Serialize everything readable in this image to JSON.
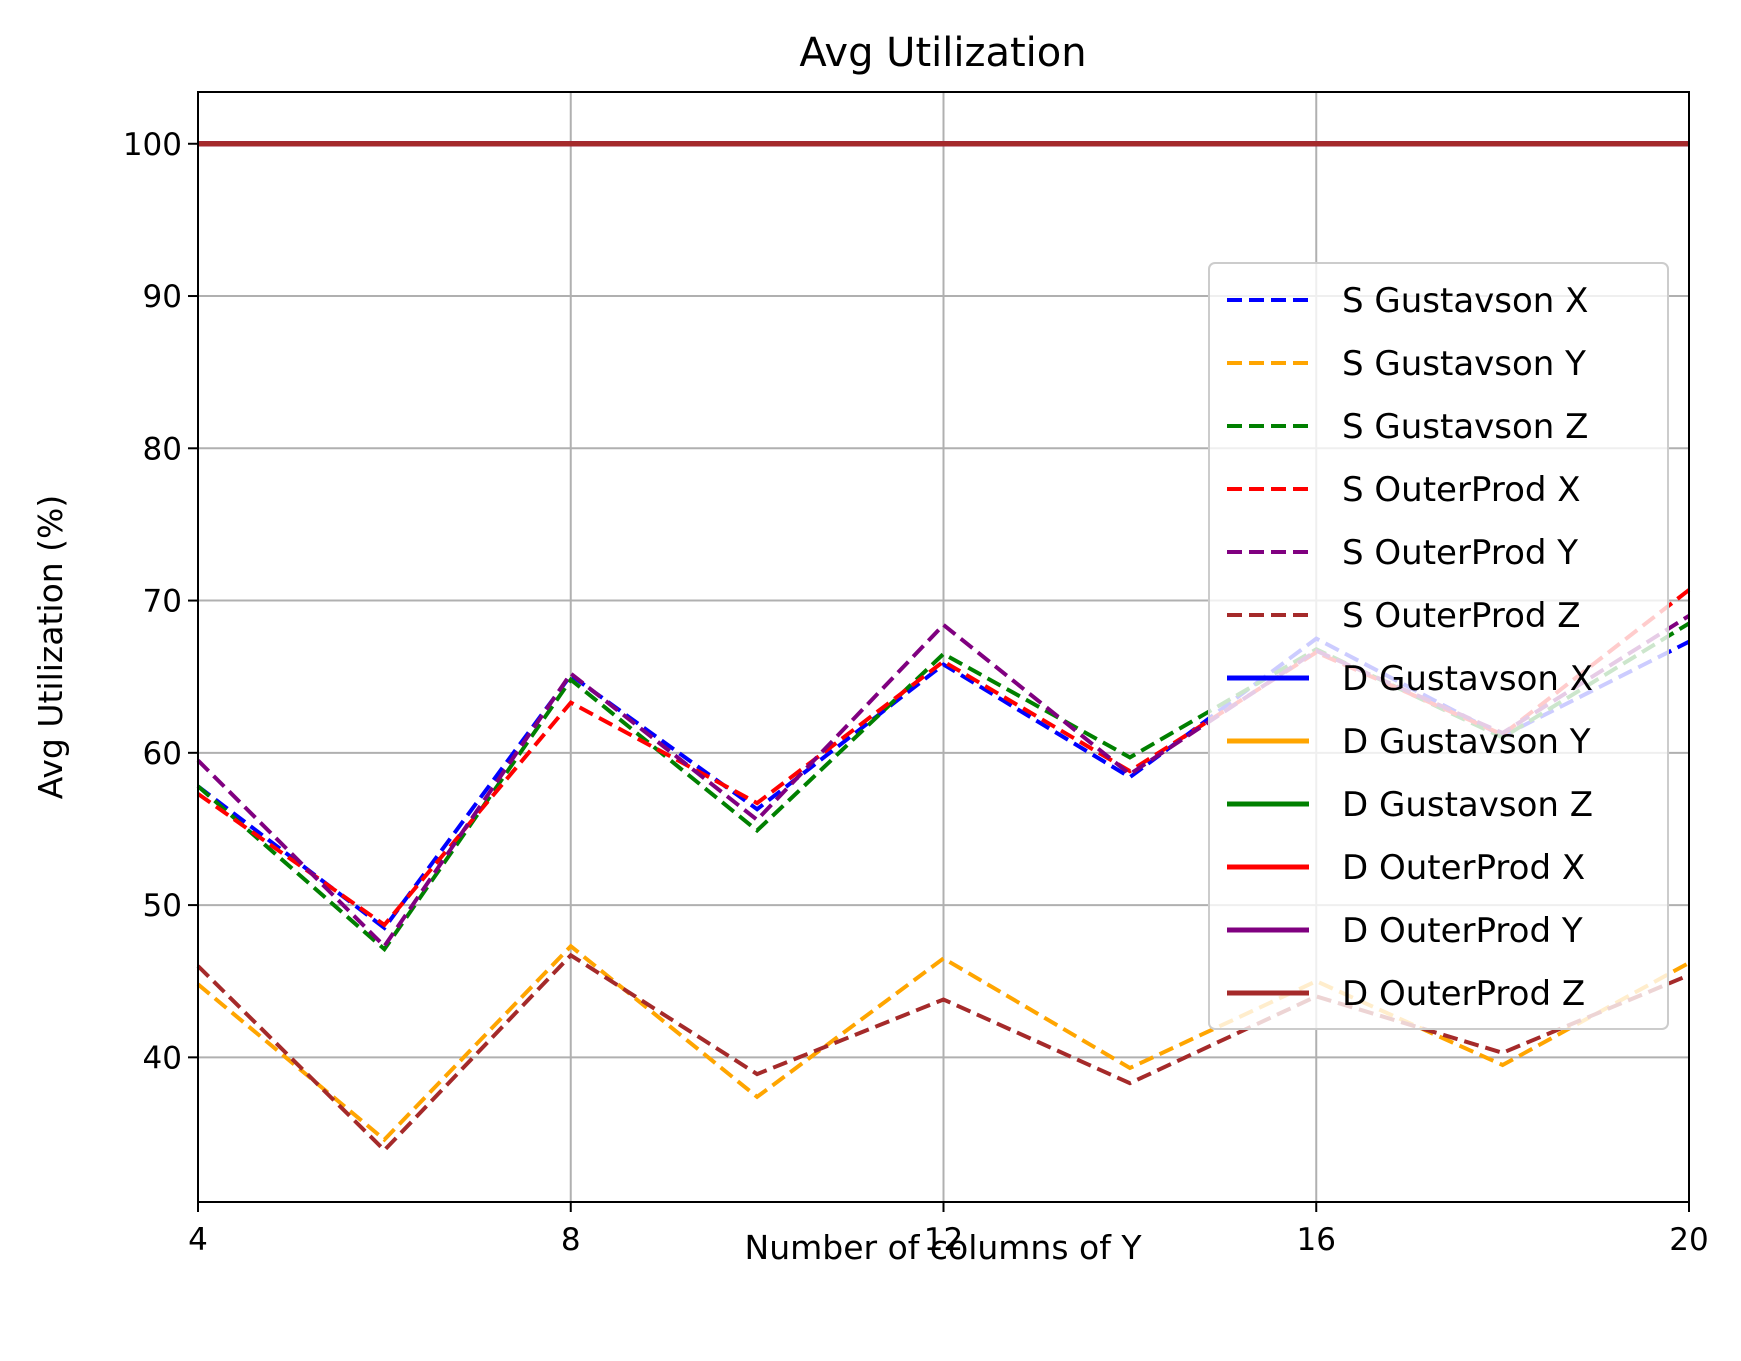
{
  "chart_data": {
    "type": "line",
    "title": "Avg Utilization",
    "xlabel": "Number of columns of Y",
    "ylabel": "Avg Utilization (%)",
    "xlim": [
      4,
      20
    ],
    "ylim": [
      30.5,
      103.4
    ],
    "xticks": [
      4,
      8,
      12,
      16,
      20
    ],
    "yticks": [
      40,
      50,
      60,
      70,
      80,
      90,
      100
    ],
    "grid": true,
    "legend_position": "right",
    "x": [
      4,
      6,
      8,
      10,
      12,
      14,
      16,
      18,
      20
    ],
    "series": [
      {
        "name": "S Gustavson X",
        "color": "#0000ff",
        "dash": true,
        "values": [
          57.8,
          48.5,
          65.1,
          56.3,
          65.8,
          58.4,
          67.5,
          61.1,
          67.3
        ]
      },
      {
        "name": "S Gustavson Y",
        "color": "#ffa500",
        "dash": true,
        "values": [
          44.8,
          34.6,
          47.3,
          37.4,
          46.5,
          39.3,
          45.0,
          39.5,
          46.2
        ]
      },
      {
        "name": "S Gustavson Z",
        "color": "#008000",
        "dash": true,
        "values": [
          57.8,
          47.1,
          64.8,
          54.9,
          66.5,
          59.7,
          66.8,
          61.0,
          68.5
        ]
      },
      {
        "name": "S OuterProd X",
        "color": "#ff0000",
        "dash": true,
        "values": [
          57.3,
          48.7,
          63.3,
          56.7,
          66.0,
          58.8,
          66.6,
          61.2,
          70.7
        ]
      },
      {
        "name": "S OuterProd Y",
        "color": "#800080",
        "dash": true,
        "values": [
          59.5,
          47.3,
          65.2,
          55.6,
          68.4,
          58.6,
          66.7,
          61.3,
          69.0
        ]
      },
      {
        "name": "S OuterProd Z",
        "color": "#a52a2a",
        "dash": true,
        "values": [
          46.0,
          33.9,
          46.7,
          38.9,
          43.8,
          38.3,
          44.0,
          40.3,
          45.4
        ]
      },
      {
        "name": "D Gustavson X",
        "color": "#0000ff",
        "dash": false,
        "values": [
          100,
          100,
          100,
          100,
          100,
          100,
          100,
          100,
          100
        ]
      },
      {
        "name": "D Gustavson Y",
        "color": "#ffa500",
        "dash": false,
        "values": [
          100,
          100,
          100,
          100,
          100,
          100,
          100,
          100,
          100
        ]
      },
      {
        "name": "D Gustavson Z",
        "color": "#008000",
        "dash": false,
        "values": [
          100,
          100,
          100,
          100,
          100,
          100,
          100,
          100,
          100
        ]
      },
      {
        "name": "D OuterProd X",
        "color": "#ff0000",
        "dash": false,
        "values": [
          100,
          100,
          100,
          100,
          100,
          100,
          100,
          100,
          100
        ]
      },
      {
        "name": "D OuterProd Y",
        "color": "#800080",
        "dash": false,
        "values": [
          100,
          100,
          100,
          100,
          100,
          100,
          100,
          100,
          100
        ]
      },
      {
        "name": "D OuterProd Z",
        "color": "#a52a2a",
        "dash": false,
        "values": [
          100,
          100,
          100,
          100,
          100,
          100,
          100,
          100,
          100
        ]
      }
    ]
  }
}
